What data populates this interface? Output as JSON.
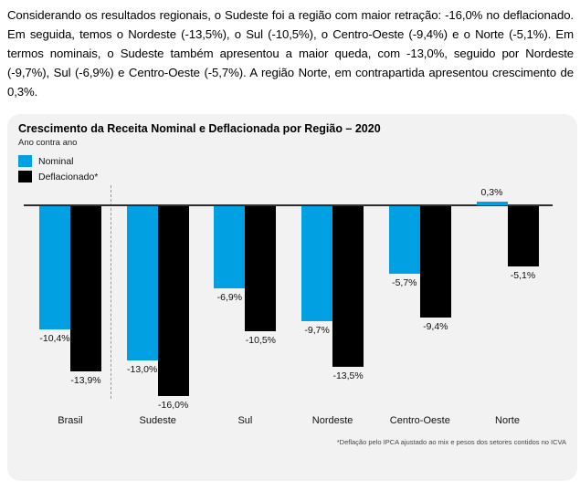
{
  "page": {
    "paragraph": "Considerando os resultados regionais, o Sudeste foi a região com maior retração: -16,0% no deflacionado. Em seguida, temos o Nordeste (-13,5%), o Sul (-10,5%), o Centro-Oeste (-9,4%) e o Norte (-5,1%). Em termos nominais, o Sudeste também apresentou a maior queda, com -13,0%, seguido por Nordeste (-9,7%), Sul (-6,9%) e Centro-Oeste (-5,7%). A região Norte, em contrapartida apresentou crescimento de 0,3%."
  },
  "chart_data": {
    "type": "bar",
    "title": "Crescimento da Receita Nominal e Deflacionada por Região – 2020",
    "subtitle": "Ano contra ano",
    "footnote": "*Deflação pelo IPCA ajustado ao mix e pesos dos setores contidos no ICVA",
    "categories": [
      "Brasil",
      "Sudeste",
      "Sul",
      "Nordeste",
      "Centro-Oeste",
      "Norte"
    ],
    "series": [
      {
        "name": "Nominal",
        "color": "#01a0e2",
        "values": [
          -10.4,
          -13.0,
          -6.9,
          -9.7,
          -5.7,
          0.3
        ],
        "labels": [
          "-10,4%",
          "-13,0%",
          "-6,9%",
          "-9,7%",
          "-5,7%",
          "0,3%"
        ]
      },
      {
        "name": "Deflacionado*",
        "color": "#000000",
        "values": [
          -13.9,
          -16.0,
          -10.5,
          -13.5,
          -9.4,
          -5.1
        ],
        "labels": [
          "-13,9%",
          "-16,0%",
          "-10,5%",
          "-13,5%",
          "-9,4%",
          "-5,1%"
        ]
      }
    ],
    "ylim": [
      -17,
      1
    ],
    "grid": false,
    "legend_position": "top-left",
    "separator_after": "Brasil",
    "colors": {
      "panel_bg": "#f2f2f2",
      "zero_line": "#2e2e2e",
      "separator": "#999999"
    }
  }
}
